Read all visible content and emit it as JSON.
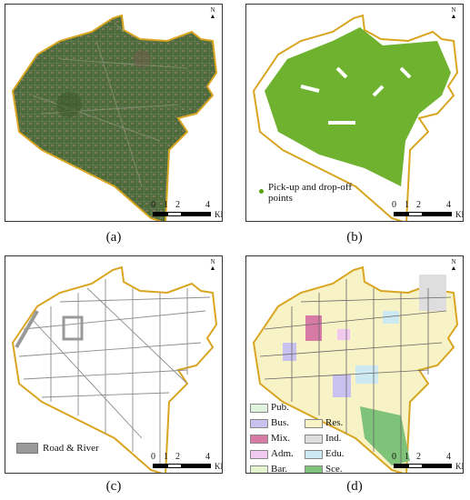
{
  "panels": {
    "a": {
      "caption": "(a)"
    },
    "b": {
      "caption": "(b)",
      "legend_label": "Pick-up and drop-off points"
    },
    "c": {
      "caption": "(c)",
      "legend_label": "Road & River"
    },
    "d": {
      "caption": "(d)"
    }
  },
  "north_arrow": {
    "label": "N"
  },
  "scale": {
    "ticks": [
      "0",
      "1",
      "2",
      "4"
    ],
    "unit": "KM"
  },
  "landuse_legend": [
    {
      "label": "Pub.",
      "color": "#dff3df"
    },
    {
      "label": "Bus.",
      "color": "#c9c2ee"
    },
    {
      "label": "Mix.",
      "color": "#d77aa6"
    },
    {
      "label": "Adm.",
      "color": "#f2c9f0"
    },
    {
      "label": "Bar.",
      "color": "#e2f5cf"
    },
    {
      "label": "Res.",
      "color": "#f7f3c6"
    },
    {
      "label": "Ind.",
      "color": "#dedede"
    },
    {
      "label": "Edu.",
      "color": "#cdeaf2"
    },
    {
      "label": "Sce.",
      "color": "#7fc27a"
    }
  ],
  "colors": {
    "boundary": "#d9a521",
    "satellite": "#4e6a3c",
    "points": "#55a40b",
    "road": "#9a9a9a",
    "river": "#999999"
  }
}
